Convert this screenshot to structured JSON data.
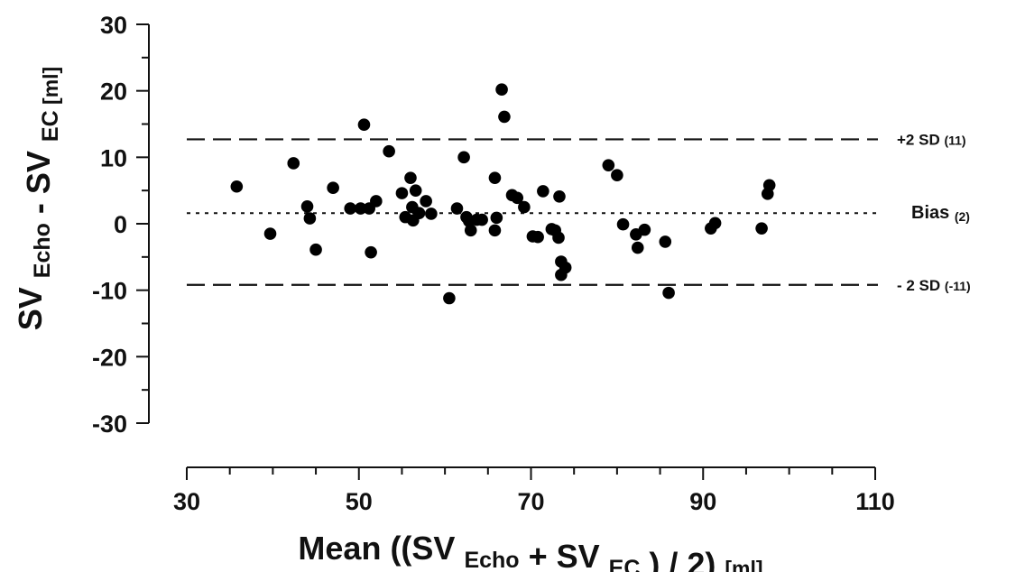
{
  "chart_data": {
    "type": "scatter",
    "title": "",
    "xlabel": {
      "parts": [
        {
          "text": "Mean ((SV ",
          "sub": false
        },
        {
          "text": "Echo",
          "sub": true
        },
        {
          "text": " + SV ",
          "sub": false
        },
        {
          "text": "EC",
          "sub": true
        },
        {
          "text": " ) / 2) ",
          "sub": false
        },
        {
          "text": "[ml]",
          "sub": false,
          "small": true
        }
      ]
    },
    "ylabel": {
      "parts": [
        {
          "text": "SV ",
          "sub": false
        },
        {
          "text": "Echo",
          "sub": true
        },
        {
          "text": " - SV ",
          "sub": false
        },
        {
          "text": "EC",
          "sub": true
        },
        {
          "text": " [ml]",
          "sub": false,
          "small": true
        }
      ]
    },
    "xlim": [
      30,
      110
    ],
    "ylim": [
      -30,
      30
    ],
    "x_ticks": [
      30,
      50,
      70,
      90,
      110
    ],
    "y_ticks": [
      30,
      20,
      10,
      0,
      -10,
      -20,
      -30
    ],
    "grid": false,
    "reference_lines": [
      {
        "name": "+2 SD",
        "value_label": "(11)",
        "y": 12.7,
        "style": "dashed"
      },
      {
        "name": "Bias",
        "value_label": "(2)",
        "y": 1.6,
        "style": "dotted"
      },
      {
        "name": "- 2 SD",
        "value_label": "(-11)",
        "y": -9.2,
        "style": "dashed"
      }
    ],
    "points": [
      [
        35.8,
        5.6
      ],
      [
        39.7,
        -1.5
      ],
      [
        42.4,
        9.1
      ],
      [
        44.0,
        2.6
      ],
      [
        44.3,
        0.8
      ],
      [
        45.0,
        -3.9
      ],
      [
        47.0,
        5.4
      ],
      [
        49.0,
        2.3
      ],
      [
        50.2,
        2.3
      ],
      [
        50.6,
        14.9
      ],
      [
        51.4,
        -4.3
      ],
      [
        51.2,
        2.3
      ],
      [
        52.0,
        3.4
      ],
      [
        53.5,
        10.9
      ],
      [
        55.0,
        4.6
      ],
      [
        55.4,
        1.0
      ],
      [
        56.0,
        6.9
      ],
      [
        56.2,
        2.5
      ],
      [
        56.3,
        0.5
      ],
      [
        56.6,
        5.0
      ],
      [
        57.0,
        1.6
      ],
      [
        57.8,
        3.4
      ],
      [
        58.4,
        1.5
      ],
      [
        60.5,
        -11.2
      ],
      [
        61.4,
        2.3
      ],
      [
        62.2,
        10.0
      ],
      [
        62.5,
        1.0
      ],
      [
        62.8,
        0.4
      ],
      [
        63.0,
        -1.0
      ],
      [
        63.7,
        0.6
      ],
      [
        64.3,
        0.6
      ],
      [
        65.8,
        6.9
      ],
      [
        65.8,
        -1.0
      ],
      [
        66.0,
        0.9
      ],
      [
        66.6,
        20.2
      ],
      [
        66.9,
        16.1
      ],
      [
        67.8,
        4.3
      ],
      [
        68.4,
        3.9
      ],
      [
        69.2,
        2.5
      ],
      [
        70.2,
        -1.9
      ],
      [
        70.8,
        -2.0
      ],
      [
        71.4,
        4.9
      ],
      [
        72.4,
        -0.8
      ],
      [
        72.8,
        -1.0
      ],
      [
        73.2,
        -2.1
      ],
      [
        73.3,
        4.1
      ],
      [
        73.5,
        -5.7
      ],
      [
        73.5,
        -7.7
      ],
      [
        74.0,
        -6.6
      ],
      [
        79.0,
        8.8
      ],
      [
        80.0,
        7.3
      ],
      [
        80.7,
        -0.1
      ],
      [
        82.2,
        -1.6
      ],
      [
        82.4,
        -3.6
      ],
      [
        83.2,
        -0.9
      ],
      [
        85.6,
        -2.7
      ],
      [
        86.0,
        -10.4
      ],
      [
        90.9,
        -0.7
      ],
      [
        91.4,
        0.1
      ],
      [
        96.8,
        -0.7
      ],
      [
        97.5,
        4.5
      ],
      [
        97.7,
        5.8
      ]
    ]
  }
}
